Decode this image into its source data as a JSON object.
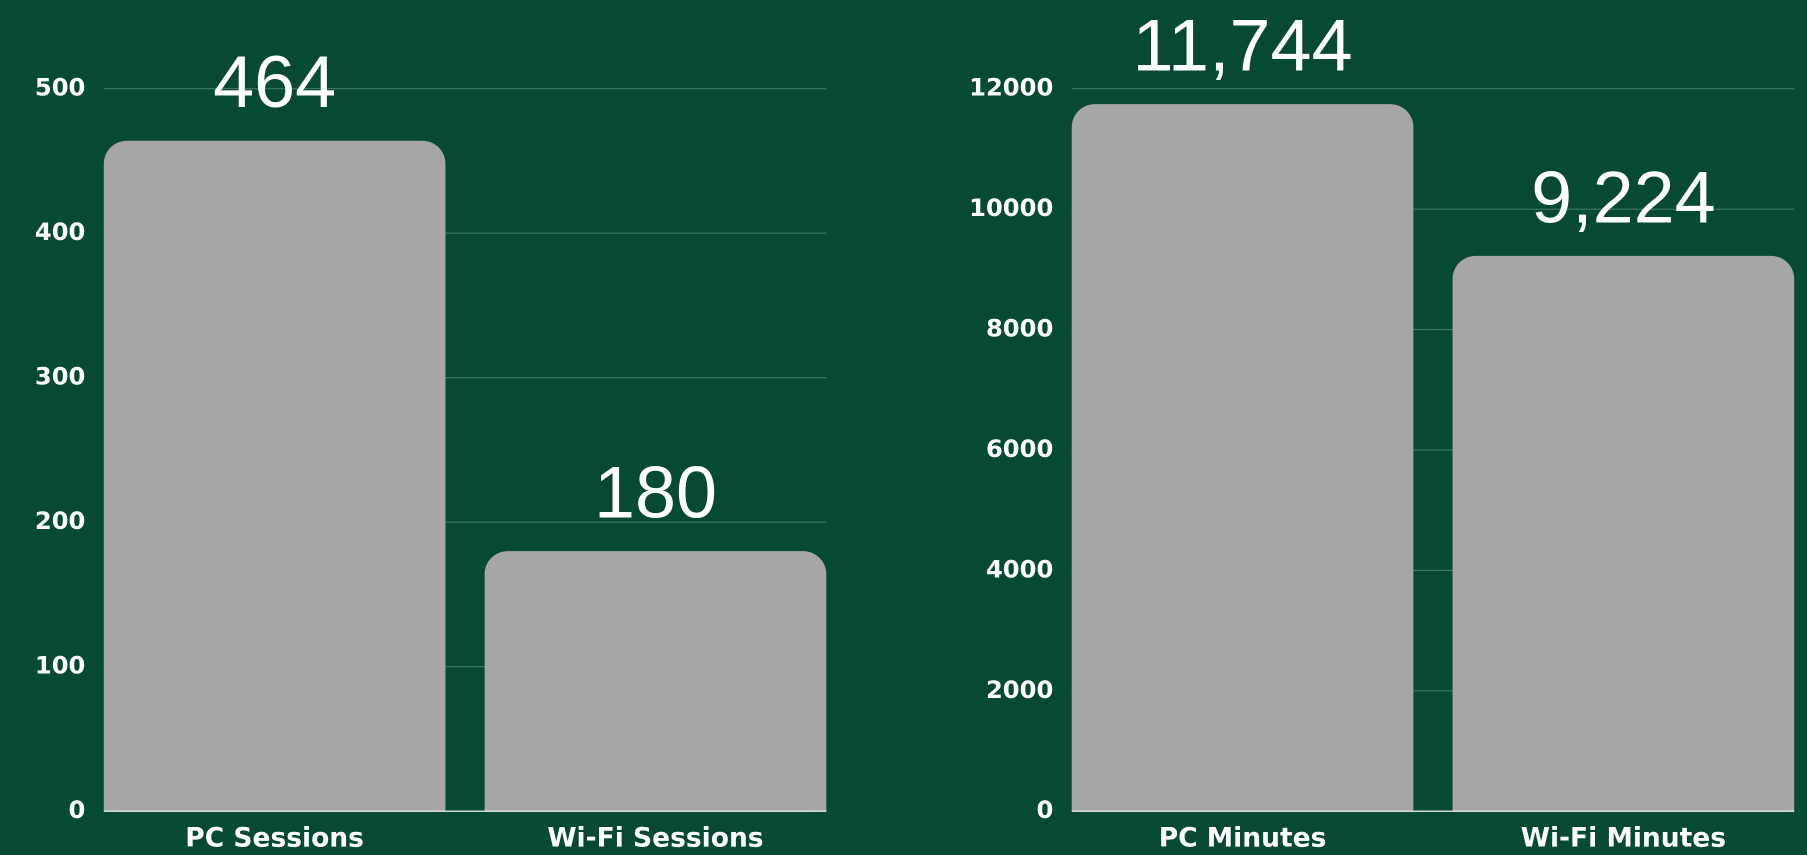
{
  "chart_data": [
    {
      "type": "bar",
      "categories": [
        "PC Sessions",
        "Wi-Fi Sessions"
      ],
      "values": [
        464,
        180
      ],
      "color": "#a6a6a6",
      "ylim": [
        0,
        500
      ],
      "yticks": [
        0,
        100,
        200,
        300,
        400,
        500
      ],
      "grid": true
    },
    {
      "type": "bar",
      "categories": [
        "PC Minutes",
        "Wi-Fi Minutes"
      ],
      "values": [
        11744,
        9224
      ],
      "value_labels": [
        "11,744",
        "9,224"
      ],
      "color": "#a6a6a6",
      "ylim": [
        0,
        12000
      ],
      "yticks": [
        0,
        2000,
        4000,
        6000,
        8000,
        10000,
        12000
      ],
      "grid": true
    }
  ]
}
